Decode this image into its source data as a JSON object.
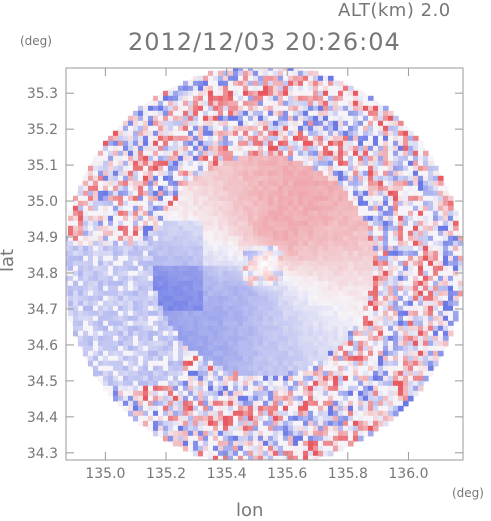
{
  "header": {
    "altitude_label": "ALT(km)  2.0",
    "timestamp": "2012/12/03 20:26:04"
  },
  "chart_data": {
    "type": "heatmap",
    "title": "2012/12/03 20:26:04",
    "subtitle": "ALT(km)  2.0",
    "xlabel": "lon",
    "ylabel": "lat",
    "xunit": "(deg)",
    "yunit": "(deg)",
    "xlim": [
      134.87,
      136.18
    ],
    "ylim": [
      34.28,
      35.37
    ],
    "xticks": [
      135.0,
      135.2,
      135.4,
      135.6,
      135.8,
      136.0
    ],
    "xtick_labels": [
      "135.0",
      "135.2",
      "135.4",
      "135.6",
      "135.8",
      "136.0"
    ],
    "yticks": [
      34.3,
      34.4,
      34.5,
      34.6,
      34.7,
      34.8,
      34.9,
      35.0,
      35.1,
      35.2,
      35.3
    ],
    "ytick_labels": [
      "34.3",
      "34.4",
      "34.5",
      "34.6",
      "34.7",
      "34.8",
      "34.9",
      "35.0",
      "35.1",
      "35.2",
      "35.3"
    ],
    "grid": false,
    "radar_center": {
      "lon": 135.52,
      "lat": 34.82
    },
    "colors": {
      "positive": "#e8595f",
      "negative": "#6b79e6",
      "neutral": "#f6f4f8"
    }
  }
}
